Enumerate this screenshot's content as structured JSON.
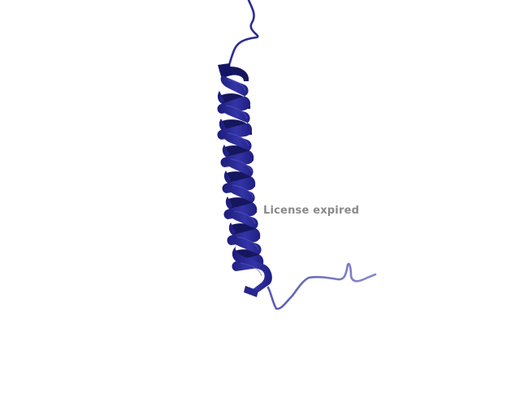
{
  "watermark": {
    "text": "License expired",
    "color": "#8a8a8a"
  },
  "structure": {
    "representation": "cartoon",
    "secondary_structure": [
      "coil",
      "alpha-helix",
      "coil"
    ],
    "colors": {
      "helix_dark": "#1a1a78",
      "helix_mid": "#2a2a9a",
      "helix_light": "#4a4ab8",
      "coil_top": "#2e2e96",
      "coil_bottom": "#7878c0"
    }
  }
}
